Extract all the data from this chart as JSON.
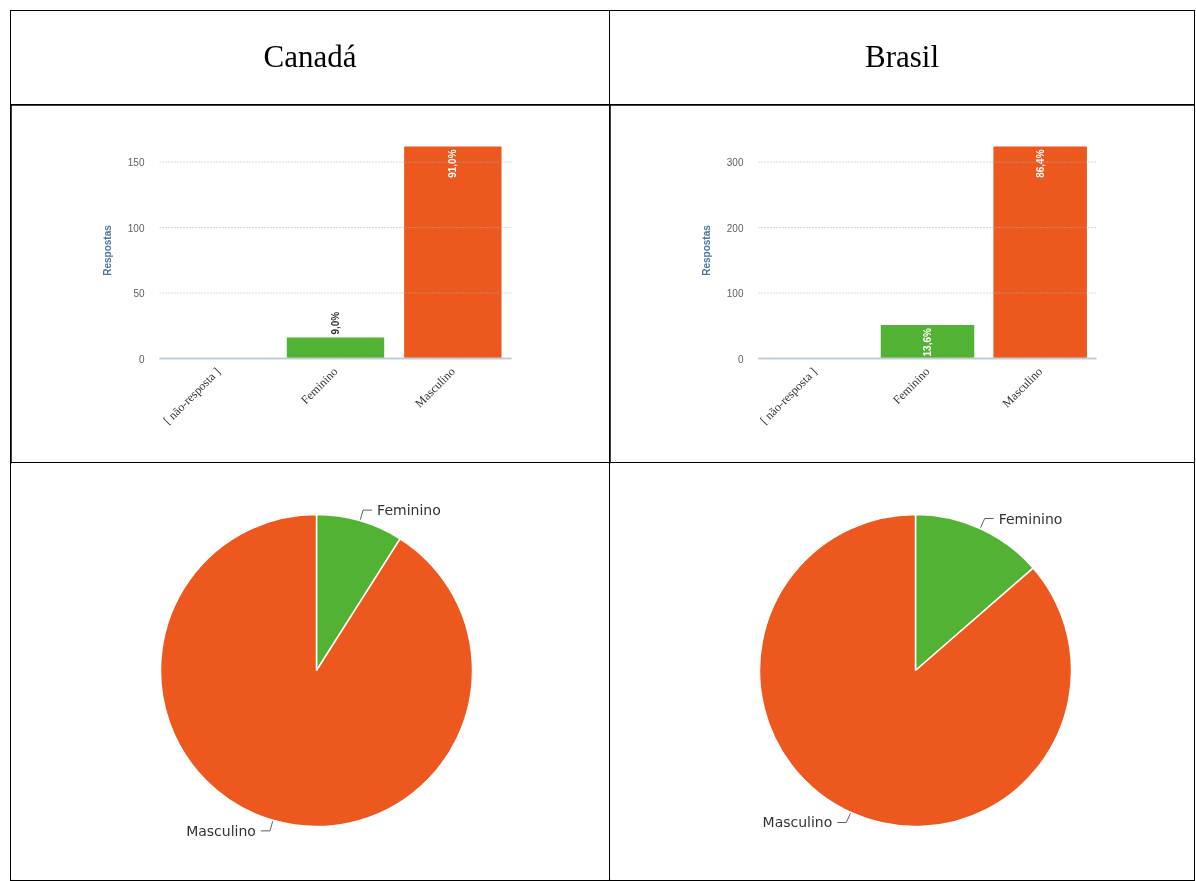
{
  "chart_data": [
    {
      "type": "bar",
      "title": "Canadá",
      "ylabel": "Respostas",
      "categories": [
        "[ não-resposta ]",
        "Feminino",
        "Masculino"
      ],
      "values": [
        0,
        16,
        162
      ],
      "colors": [
        null,
        "#52b234",
        "#ec581d"
      ],
      "annotations": [
        {
          "text": "9,0%",
          "x": "Feminino",
          "y": 16
        },
        {
          "text": "91,0%",
          "x": "Masculino",
          "y": 162
        }
      ],
      "ylim": [
        0,
        165
      ],
      "yticks": [
        0,
        50,
        100,
        150
      ],
      "grid": "y"
    },
    {
      "type": "bar",
      "title": "Brasil",
      "ylabel": "Respostas",
      "categories": [
        "[ não-resposta ]",
        "Feminino",
        "Masculino"
      ],
      "values": [
        0,
        51,
        324
      ],
      "colors": [
        null,
        "#52b234",
        "#ec581d"
      ],
      "annotations": [
        {
          "text": "13,6%",
          "x": "Feminino",
          "y": 51
        },
        {
          "text": "86,4%",
          "x": "Masculino",
          "y": 324
        }
      ],
      "ylim": [
        0,
        330
      ],
      "yticks": [
        0,
        100,
        200,
        300
      ],
      "grid": "y"
    },
    {
      "type": "pie",
      "categories": [
        "Feminino",
        "Masculino"
      ],
      "values": [
        9.0,
        91.0
      ],
      "colors": [
        "#52b234",
        "#ec581d"
      ]
    },
    {
      "type": "pie",
      "categories": [
        "Feminino",
        "Masculino"
      ],
      "values": [
        13.6,
        86.4
      ],
      "colors": [
        "#52b234",
        "#ec581d"
      ]
    }
  ]
}
